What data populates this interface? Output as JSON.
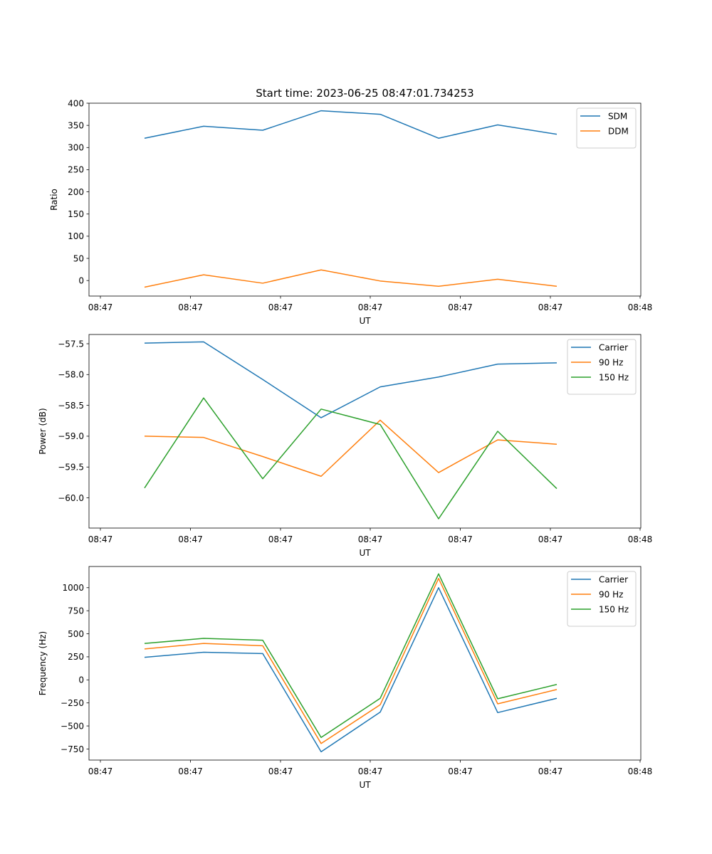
{
  "figure": {
    "title": "Start time: 2023-06-25 08:47:01.734253"
  },
  "chart_data": [
    {
      "type": "line",
      "xlabel": "UT",
      "ylabel": "Ratio",
      "x_tick_labels": [
        "08:47",
        "08:47",
        "08:47",
        "08:47",
        "08:47",
        "08:47",
        "08:48"
      ],
      "yticks": [
        0,
        50,
        100,
        150,
        200,
        250,
        300,
        350,
        400
      ],
      "ylim": [
        -35,
        400
      ],
      "grid": false,
      "legend_position": "upper right",
      "series": [
        {
          "name": "SDM",
          "color": "#1f77b4",
          "values": [
            321,
            348,
            339,
            383,
            375,
            321,
            351,
            330
          ]
        },
        {
          "name": "DDM",
          "color": "#ff7f0e",
          "values": [
            -15,
            13,
            -6,
            24,
            -1,
            -13,
            3,
            -13
          ]
        }
      ]
    },
    {
      "type": "line",
      "xlabel": "UT",
      "ylabel": "Power (dB)",
      "x_tick_labels": [
        "08:47",
        "08:47",
        "08:47",
        "08:47",
        "08:47",
        "08:47",
        "08:48"
      ],
      "yticks": [
        -60.0,
        -59.5,
        -59.0,
        -58.5,
        -58.0,
        -57.5
      ],
      "ytick_labels": [
        "−60.0",
        "−59.5",
        "−59.0",
        "−58.5",
        "−58.0",
        "−57.5"
      ],
      "ylim": [
        -60.49,
        -57.35
      ],
      "grid": false,
      "legend_position": "upper right",
      "series": [
        {
          "name": "Carrier",
          "color": "#1f77b4",
          "values": [
            -57.49,
            -57.47,
            -58.08,
            -58.7,
            -58.2,
            -58.04,
            -57.83,
            -57.81
          ]
        },
        {
          "name": "90 Hz",
          "color": "#ff7f0e",
          "values": [
            -59.0,
            -59.02,
            -59.33,
            -59.65,
            -58.74,
            -59.59,
            -59.06,
            -59.13
          ]
        },
        {
          "name": "150 Hz",
          "color": "#2ca02c",
          "values": [
            -59.84,
            -58.38,
            -59.69,
            -58.56,
            -58.81,
            -60.34,
            -58.92,
            -59.85
          ]
        }
      ]
    },
    {
      "type": "line",
      "xlabel": "UT",
      "ylabel": "Frequency (Hz)",
      "x_tick_labels": [
        "08:47",
        "08:47",
        "08:47",
        "08:47",
        "08:47",
        "08:47",
        "08:48"
      ],
      "yticks": [
        -750,
        -500,
        -250,
        0,
        250,
        500,
        750,
        1000
      ],
      "ytick_labels": [
        "−750",
        "−500",
        "−250",
        "0",
        "250",
        "500",
        "750",
        "1000"
      ],
      "ylim": [
        -870,
        1230
      ],
      "grid": false,
      "legend_position": "upper right",
      "series": [
        {
          "name": "Carrier",
          "color": "#1f77b4",
          "values": [
            245,
            300,
            285,
            -780,
            -350,
            1000,
            -355,
            -200
          ]
        },
        {
          "name": "90 Hz",
          "color": "#ff7f0e",
          "values": [
            335,
            395,
            370,
            -690,
            -270,
            1100,
            -260,
            -105
          ]
        },
        {
          "name": "150 Hz",
          "color": "#2ca02c",
          "values": [
            395,
            450,
            430,
            -625,
            -200,
            1150,
            -205,
            -50
          ]
        }
      ]
    }
  ]
}
